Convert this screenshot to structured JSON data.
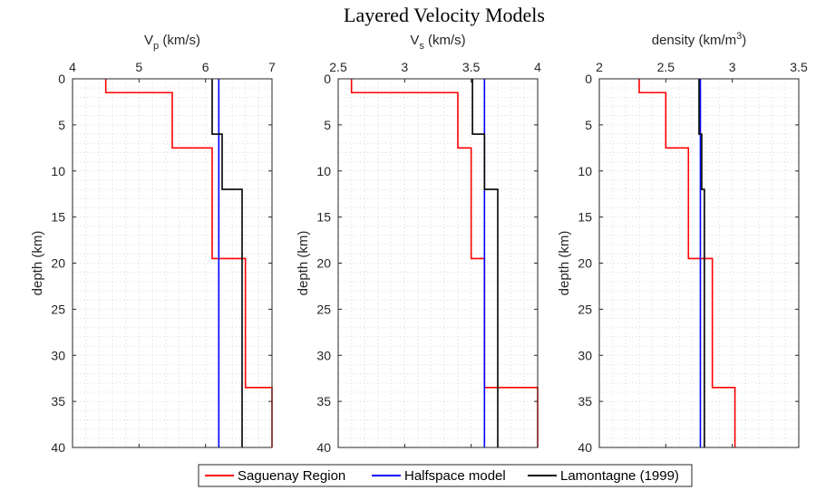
{
  "figure": {
    "title": "Layered Velocity Models",
    "legend": {
      "placement": "bottom-center",
      "entries": [
        {
          "label": "Saguenay Region",
          "color": "#ff0000"
        },
        {
          "label": "Halfspace model",
          "color": "#0000ff"
        },
        {
          "label": "Lamontagne (1999)",
          "color": "#000000"
        }
      ]
    }
  },
  "colors": {
    "saguenay": "#ff0000",
    "halfspace": "#0000ff",
    "lamontagne": "#000000",
    "axis": "#262626",
    "grid": "#d9d9d9"
  },
  "chart_data": [
    {
      "type": "line",
      "xlabel_main": "V",
      "xlabel_sub": "p",
      "xlabel_unit": " (km/s)",
      "ylabel": "depth (km)",
      "xlim": [
        4,
        7
      ],
      "ylim": [
        0,
        40
      ],
      "y_reversed": true,
      "x_axis_location": "top",
      "xticks": [
        4,
        5,
        6,
        7
      ],
      "xtick_labels": [
        "4",
        "5",
        "6",
        "7"
      ],
      "yticks": [
        0,
        5,
        10,
        15,
        20,
        25,
        30,
        35,
        40
      ],
      "ytick_labels": [
        "0",
        "5",
        "10",
        "15",
        "20",
        "25",
        "30",
        "35",
        "40"
      ],
      "grid": "minor dotted",
      "series": [
        {
          "name": "Saguenay Region",
          "color": "#ff0000",
          "x": [
            4.5,
            4.5,
            5.5,
            5.5,
            6.1,
            6.1,
            6.6,
            6.6,
            7.0,
            7.0
          ],
          "y": [
            0,
            1.5,
            1.5,
            7.5,
            7.5,
            19.5,
            19.5,
            33.5,
            33.5,
            40
          ]
        },
        {
          "name": "Halfspace model",
          "color": "#0000ff",
          "x": [
            6.2,
            6.2
          ],
          "y": [
            0,
            40
          ]
        },
        {
          "name": "Lamontagne (1999)",
          "color": "#000000",
          "x": [
            6.1,
            6.1,
            6.25,
            6.25,
            6.55,
            6.55
          ],
          "y": [
            0,
            6,
            6,
            12,
            12,
            40
          ]
        }
      ]
    },
    {
      "type": "line",
      "xlabel_main": "V",
      "xlabel_sub": "s",
      "xlabel_unit": " (km/s)",
      "ylabel": "depth (km)",
      "xlim": [
        2.5,
        4
      ],
      "ylim": [
        0,
        40
      ],
      "y_reversed": true,
      "x_axis_location": "top",
      "xticks": [
        2.5,
        3,
        3.5,
        4
      ],
      "xtick_labels": [
        "2.5",
        "3",
        "3.5",
        "4"
      ],
      "yticks": [
        0,
        5,
        10,
        15,
        20,
        25,
        30,
        35,
        40
      ],
      "ytick_labels": [
        "0",
        "5",
        "10",
        "15",
        "20",
        "25",
        "30",
        "35",
        "40"
      ],
      "grid": "minor dotted",
      "series": [
        {
          "name": "Saguenay Region",
          "color": "#ff0000",
          "x": [
            2.6,
            2.6,
            3.4,
            3.4,
            3.5,
            3.5,
            3.6,
            3.6,
            4.0,
            4.0
          ],
          "y": [
            0,
            1.5,
            1.5,
            7.5,
            7.5,
            19.5,
            19.5,
            33.5,
            33.5,
            40
          ]
        },
        {
          "name": "Halfspace model",
          "color": "#0000ff",
          "x": [
            3.6,
            3.6
          ],
          "y": [
            0,
            40
          ]
        },
        {
          "name": "Lamontagne (1999)",
          "color": "#000000",
          "x": [
            3.51,
            3.51,
            3.6,
            3.6,
            3.7,
            3.7
          ],
          "y": [
            0,
            6,
            6,
            12,
            12,
            40
          ]
        }
      ]
    },
    {
      "type": "line",
      "xlabel_main": "density (km/m",
      "xlabel_sup": "3",
      "xlabel_close": ")",
      "ylabel": "depth (km)",
      "xlim": [
        2,
        3.5
      ],
      "ylim": [
        0,
        40
      ],
      "y_reversed": true,
      "x_axis_location": "top",
      "xticks": [
        2,
        2.5,
        3,
        3.5
      ],
      "xtick_labels": [
        "2",
        "2.5",
        "3",
        "3.5"
      ],
      "yticks": [
        0,
        5,
        10,
        15,
        20,
        25,
        30,
        35,
        40
      ],
      "ytick_labels": [
        "0",
        "5",
        "10",
        "15",
        "20",
        "25",
        "30",
        "35",
        "40"
      ],
      "grid": "minor dotted",
      "series": [
        {
          "name": "Saguenay Region",
          "color": "#ff0000",
          "x": [
            2.3,
            2.3,
            2.5,
            2.5,
            2.67,
            2.67,
            2.85,
            2.85,
            3.02,
            3.02
          ],
          "y": [
            0,
            1.5,
            1.5,
            7.5,
            7.5,
            19.5,
            19.5,
            33.5,
            33.5,
            40
          ]
        },
        {
          "name": "Halfspace model",
          "color": "#0000ff",
          "x": [
            2.76,
            2.76
          ],
          "y": [
            0,
            40
          ]
        },
        {
          "name": "Lamontagne (1999)",
          "color": "#000000",
          "x": [
            2.75,
            2.75,
            2.77,
            2.77,
            2.79,
            2.79
          ],
          "y": [
            0,
            6,
            6,
            12,
            12,
            40
          ]
        }
      ]
    }
  ]
}
